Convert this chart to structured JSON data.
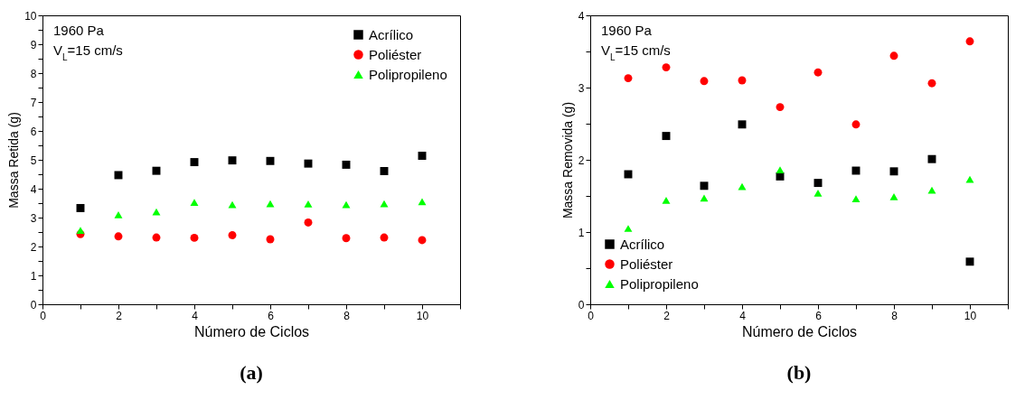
{
  "chart_data": [
    {
      "type": "scatter",
      "title": "(a)",
      "xlabel": "Número de Ciclos",
      "ylabel": "Massa Retida (g)",
      "x": [
        1,
        2,
        3,
        4,
        5,
        6,
        7,
        8,
        9,
        10
      ],
      "series": [
        {
          "name": "Acrílico",
          "color": "#000000",
          "marker": "square",
          "values": [
            3.33,
            4.47,
            4.62,
            4.92,
            4.98,
            4.96,
            4.87,
            4.83,
            4.61,
            5.14
          ]
        },
        {
          "name": "Poliéster",
          "color": "#ff0000",
          "marker": "circle",
          "values": [
            2.43,
            2.35,
            2.31,
            2.3,
            2.39,
            2.25,
            2.83,
            2.29,
            2.31,
            2.22
          ]
        },
        {
          "name": "Polipropileno",
          "color": "#00ff00",
          "marker": "triangle",
          "values": [
            2.56,
            3.1,
            3.2,
            3.53,
            3.45,
            3.48,
            3.47,
            3.45,
            3.48,
            3.55
          ]
        }
      ],
      "xlim": [
        0,
        11
      ],
      "xticks": [
        0,
        {
          "value": 1,
          "label": null
        },
        2,
        {
          "value": 3,
          "label": null
        },
        4,
        {
          "value": 5,
          "label": null
        },
        6,
        {
          "value": 7,
          "label": null
        },
        8,
        {
          "value": 9,
          "label": null
        },
        10,
        {
          "value": 11,
          "label": null
        }
      ],
      "ylim": [
        0,
        10
      ],
      "yticks": [
        0,
        {
          "value": 0.5,
          "label": null
        },
        1,
        {
          "value": 1.5,
          "label": null
        },
        2,
        {
          "value": 2.5,
          "label": null
        },
        3,
        {
          "value": 3.5,
          "label": null
        },
        4,
        {
          "value": 4.5,
          "label": null
        },
        5,
        {
          "value": 5.5,
          "label": null
        },
        6,
        {
          "value": 6.5,
          "label": null
        },
        7,
        {
          "value": 7.5,
          "label": null
        },
        8,
        {
          "value": 8.5,
          "label": null
        },
        9,
        {
          "value": 9.5,
          "label": null
        },
        10
      ],
      "annotations": [
        "1960 Pa",
        "V$_{L}$=15 cm/s"
      ],
      "legend": "top right",
      "grid": false
    },
    {
      "type": "scatter",
      "title": "(b)",
      "xlabel": "Número de Ciclos",
      "ylabel": "Massa Removida (g)",
      "x": [
        1,
        2,
        3,
        4,
        5,
        6,
        7,
        8,
        9,
        10
      ],
      "series": [
        {
          "name": "Acrílico",
          "color": "#000000",
          "marker": "square",
          "values": [
            1.8,
            2.33,
            1.64,
            2.49,
            1.77,
            1.68,
            1.85,
            1.84,
            2.01,
            0.59
          ]
        },
        {
          "name": "Poliéster",
          "color": "#ff0000",
          "marker": "circle",
          "values": [
            3.13,
            3.28,
            3.09,
            3.1,
            2.73,
            3.21,
            2.49,
            3.44,
            3.06,
            3.64
          ]
        },
        {
          "name": "Polipropileno",
          "color": "#00ff00",
          "marker": "triangle",
          "values": [
            1.05,
            1.44,
            1.47,
            1.63,
            1.86,
            1.54,
            1.46,
            1.49,
            1.58,
            1.73
          ]
        }
      ],
      "xlim": [
        0,
        11
      ],
      "xticks": [
        0,
        {
          "value": 1,
          "label": null
        },
        2,
        {
          "value": 3,
          "label": null
        },
        4,
        {
          "value": 5,
          "label": null
        },
        6,
        {
          "value": 7,
          "label": null
        },
        8,
        {
          "value": 9,
          "label": null
        },
        10,
        {
          "value": 11,
          "label": null
        }
      ],
      "ylim": [
        0,
        4
      ],
      "yticks": [
        0,
        {
          "value": 0.5,
          "label": null
        },
        1,
        {
          "value": 1.5,
          "label": null
        },
        2,
        {
          "value": 2.5,
          "label": null
        },
        3,
        {
          "value": 3.5,
          "label": null
        },
        4
      ],
      "annotations": [
        "1960 Pa",
        "V$_{L}$=15 cm/s"
      ],
      "legend": "bottom left",
      "grid": false
    }
  ]
}
